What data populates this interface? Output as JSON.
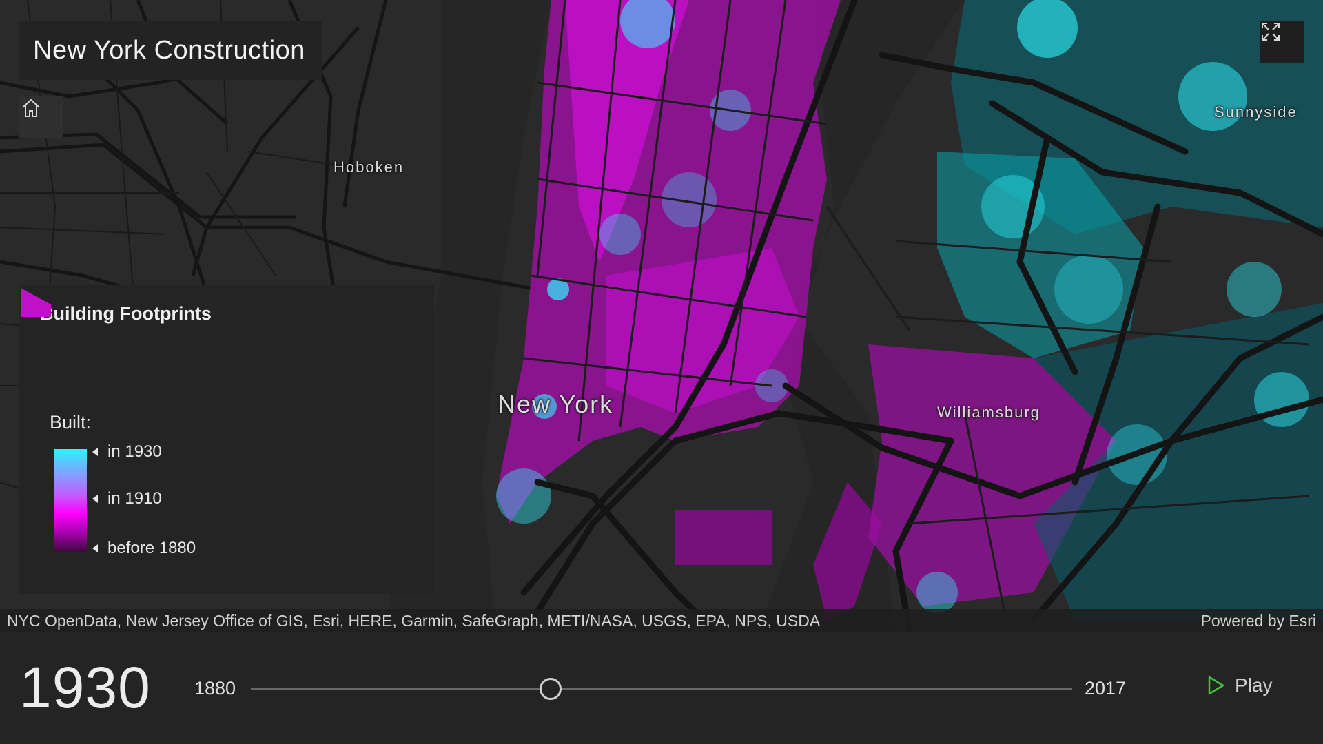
{
  "app": {
    "title": "New York Construction"
  },
  "map": {
    "labels": {
      "hoboken": "Hoboken",
      "new_york": "New York",
      "williamsburg": "Williamsburg",
      "sunnyside": "Sunnyside"
    },
    "controls": {
      "home_icon": "home-icon",
      "expand_icon": "fullscreen-icon"
    },
    "colors": {
      "background": "#2b2b2b",
      "roads": "#141414",
      "old_buildings": "#ff00ff",
      "new_buildings": "#2df2ff"
    }
  },
  "legend": {
    "title": "Building Footprints",
    "built_label": "Built:",
    "stops": [
      "in 1930",
      "in 1910",
      "before 1880"
    ],
    "swatch_color": "#c010c8"
  },
  "attribution": {
    "sources": "NYC OpenData, New Jersey Office of GIS, Esri, HERE, Garmin, SafeGraph, METI/NASA, USGS, EPA, NPS, USDA",
    "powered_by": "Powered by Esri"
  },
  "time_slider": {
    "current_year": "1930",
    "min_year": "1880",
    "max_year": "2017",
    "current_value": 1930,
    "min_value": 1880,
    "max_value": 2017,
    "play_label": "Play",
    "play_color": "#3ec43e"
  }
}
